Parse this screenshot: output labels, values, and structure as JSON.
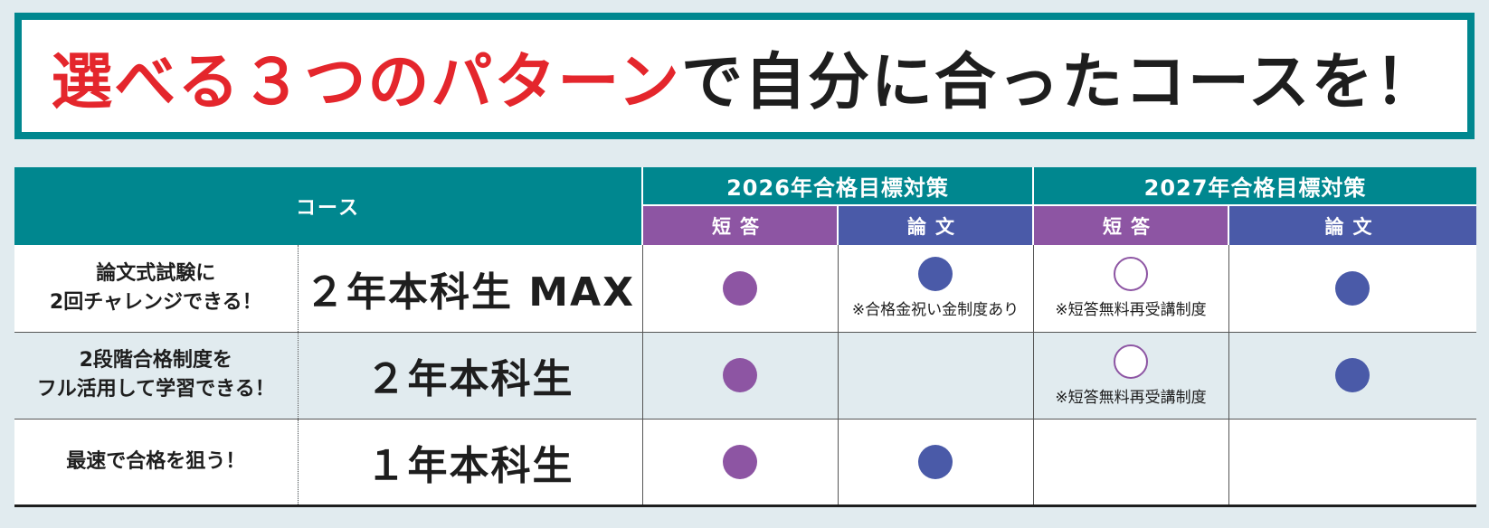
{
  "headline": {
    "red_part": "選べる３つのパターン",
    "dark_part": "で自分に合ったコースを！"
  },
  "colors": {
    "teal": "#00878f",
    "red": "#e4262c",
    "short_answer_purple": "#8d55a3",
    "essay_blue": "#4a5aa8",
    "row_tint": "#e1ebef"
  },
  "table": {
    "header": {
      "course": "コース",
      "years": [
        "2026年合格目標対策",
        "2027年合格目標対策"
      ],
      "sub_short": "短答",
      "sub_essay": "論文"
    },
    "rows": [
      {
        "desc_line1": "論文式試験に",
        "desc_line2": "2回チャレンジできる！",
        "course": "２年本科生 MAX",
        "cells": [
          {
            "mark": "purple",
            "note": ""
          },
          {
            "mark": "blue",
            "note": "※合格金祝い金制度あり"
          },
          {
            "mark": "hollow",
            "note": "※短答無料再受講制度"
          },
          {
            "mark": "blue",
            "note": ""
          }
        ]
      },
      {
        "desc_line1": "2段階合格制度を",
        "desc_line2": "フル活用して学習できる！",
        "course": "２年本科生",
        "cells": [
          {
            "mark": "purple",
            "note": ""
          },
          {
            "mark": "none",
            "note": ""
          },
          {
            "mark": "hollow",
            "note": "※短答無料再受講制度"
          },
          {
            "mark": "blue",
            "note": ""
          }
        ]
      },
      {
        "desc_line1": "最速で合格を狙う！",
        "desc_line2": "",
        "course": "１年本科生",
        "cells": [
          {
            "mark": "purple",
            "note": ""
          },
          {
            "mark": "blue",
            "note": ""
          },
          {
            "mark": "none",
            "note": ""
          },
          {
            "mark": "none",
            "note": ""
          }
        ]
      }
    ]
  }
}
